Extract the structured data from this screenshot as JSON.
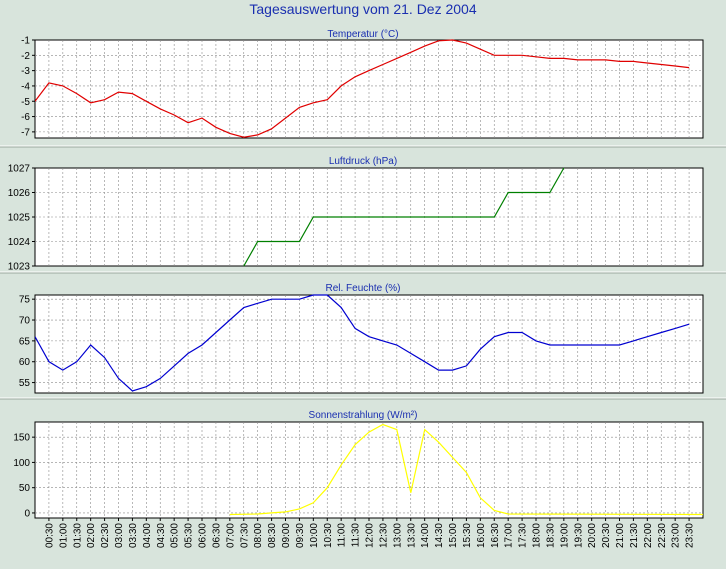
{
  "title": "Tagesauswertung vom 21. Dez 2004",
  "x_ticks": [
    "00:30",
    "01:00",
    "01:30",
    "02:00",
    "02:30",
    "03:00",
    "03:30",
    "04:00",
    "04:30",
    "05:00",
    "05:30",
    "06:00",
    "06:30",
    "07:00",
    "07:30",
    "08:00",
    "08:30",
    "09:00",
    "09:30",
    "10:00",
    "10:30",
    "11:00",
    "11:30",
    "12:00",
    "12:30",
    "13:00",
    "13:30",
    "14:00",
    "14:30",
    "15:00",
    "15:30",
    "16:00",
    "16:30",
    "17:00",
    "17:30",
    "18:00",
    "18:30",
    "19:00",
    "19:30",
    "20:00",
    "20:30",
    "21:00",
    "21:30",
    "22:00",
    "22:30",
    "23:00",
    "23:30"
  ],
  "colors": {
    "background": "#d8e4dc",
    "plot_bg": "#ffffff",
    "grid": "#8a8a8a",
    "title": "#1a2fb0",
    "temperature": "#e00000",
    "pressure": "#008000",
    "humidity": "#0000d0",
    "radiation": "#ffff00"
  },
  "chart_data": [
    {
      "type": "line",
      "title": "Temperatur (°C)",
      "y_ticks": [
        "-1",
        "-2",
        "-3",
        "-4",
        "-5",
        "-6",
        "-7"
      ],
      "ylim": [
        -7.4,
        -1
      ],
      "grid": true,
      "x": [
        0,
        0.5,
        1,
        1.5,
        2,
        2.5,
        3,
        3.5,
        4,
        4.5,
        5,
        5.5,
        6,
        6.5,
        7,
        7.5,
        8,
        8.5,
        9,
        9.5,
        10,
        10.5,
        11,
        11.5,
        12,
        12.5,
        13,
        13.5,
        14,
        14.5,
        15,
        15.5,
        16,
        16.5,
        17,
        17.5,
        18,
        18.5,
        19,
        19.5,
        20,
        20.5,
        21,
        21.5,
        22,
        22.5,
        23,
        23.5
      ],
      "y": [
        -5.0,
        -3.8,
        -4.0,
        -4.5,
        -5.1,
        -4.9,
        -4.4,
        -4.5,
        -5.0,
        -5.5,
        -5.9,
        -6.4,
        -6.1,
        -6.7,
        -7.1,
        -7.35,
        -7.2,
        -6.8,
        -6.1,
        -5.4,
        -5.1,
        -4.9,
        -4.0,
        -3.4,
        -3.0,
        -2.6,
        -2.2,
        -1.8,
        -1.4,
        -1.05,
        -1.0,
        -1.2,
        -1.6,
        -2.0,
        -2.0,
        -2.0,
        -2.1,
        -2.2,
        -2.2,
        -2.3,
        -2.3,
        -2.3,
        -2.4,
        -2.4,
        -2.5,
        -2.6,
        -2.7,
        -2.8
      ]
    },
    {
      "type": "line",
      "title": "Luftdruck (hPa)",
      "y_ticks": [
        "1027",
        "1026",
        "1025",
        "1024",
        "1023"
      ],
      "ylim": [
        1023,
        1027
      ],
      "grid": true,
      "x": [
        7.5,
        8,
        9.5,
        10,
        11,
        16.5,
        17,
        18.5,
        19
      ],
      "y": [
        1023,
        1024,
        1024,
        1025,
        1025,
        1025,
        1026,
        1026,
        1027
      ]
    },
    {
      "type": "line",
      "title": "Rel. Feuchte (%)",
      "y_ticks": [
        "75",
        "70",
        "65",
        "60",
        "55"
      ],
      "ylim": [
        52.5,
        76
      ],
      "grid": true,
      "x": [
        0,
        0.5,
        1,
        1.5,
        2,
        2.5,
        3,
        3.5,
        4,
        4.5,
        5,
        5.5,
        6,
        6.5,
        7,
        7.5,
        8,
        8.5,
        9,
        9.5,
        10,
        10.5,
        11,
        11.5,
        12,
        12.5,
        13,
        13.5,
        14,
        14.5,
        15,
        15.5,
        16,
        16.5,
        17,
        17.5,
        18,
        18.5,
        19,
        19.5,
        20,
        20.5,
        21,
        21.5,
        22,
        22.5,
        23,
        23.5
      ],
      "y": [
        66,
        60,
        58,
        60,
        64,
        61,
        56,
        53,
        54,
        56,
        59,
        62,
        64,
        67,
        70,
        73,
        74,
        75,
        75,
        75,
        76,
        76,
        73,
        68,
        66,
        65,
        64,
        62,
        60,
        58,
        58,
        59,
        63,
        66,
        67,
        67,
        65,
        64,
        64,
        64,
        64,
        64,
        64,
        65,
        66,
        67,
        68,
        69
      ]
    },
    {
      "type": "line",
      "title": "Sonnenstrahlung (W/m²)",
      "y_ticks": [
        "150",
        "100",
        "50",
        "0"
      ],
      "ylim": [
        -10,
        180
      ],
      "grid": true,
      "x": [
        7,
        8,
        8.5,
        9,
        9.5,
        10,
        10.5,
        11,
        11.5,
        12,
        12.5,
        13,
        13.5,
        14,
        14.5,
        15,
        15.5,
        16,
        16.5,
        17,
        24
      ],
      "y": [
        -3,
        -2,
        0,
        2,
        8,
        20,
        50,
        95,
        135,
        160,
        175,
        165,
        40,
        165,
        140,
        110,
        80,
        30,
        5,
        -2,
        -3
      ]
    }
  ]
}
